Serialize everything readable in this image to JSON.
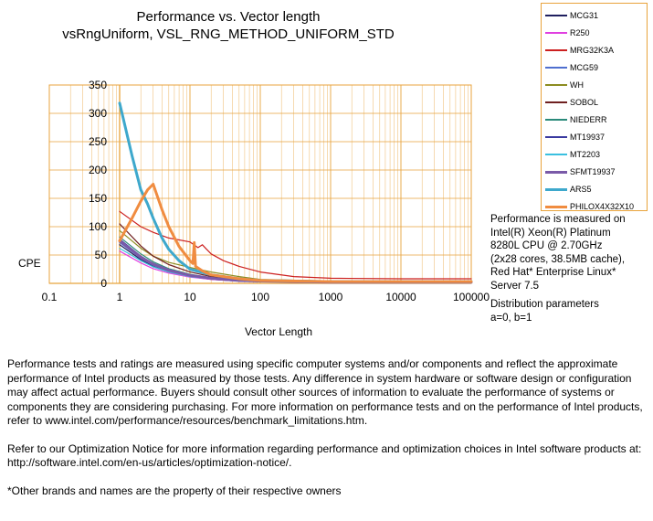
{
  "chart_data": {
    "type": "line",
    "title": "Performance vs. Vector length",
    "subtitle": "vsRngUniform, VSL_RNG_METHOD_UNIFORM_STD",
    "xlabel": "Vector Length",
    "ylabel": "CPE",
    "x_scale": "log",
    "xlim": [
      0.1,
      100000
    ],
    "ylim": [
      0,
      350
    ],
    "x_ticks": [
      "0.1",
      "1",
      "10",
      "100",
      "1000",
      "10000",
      "100000"
    ],
    "y_ticks": [
      "0",
      "50",
      "100",
      "150",
      "200",
      "250",
      "300",
      "350"
    ],
    "grid": true,
    "legend_position": "top-right",
    "series": [
      {
        "name": "MCG31",
        "color": "#1f1f5f",
        "width": 1.2,
        "x": [
          1,
          2,
          3,
          5,
          10,
          20,
          50,
          100,
          1000,
          10000,
          100000
        ],
        "y": [
          68,
          42,
          30,
          20,
          12,
          7,
          4,
          3,
          2,
          2,
          2
        ]
      },
      {
        "name": "R250",
        "color": "#e040e0",
        "width": 1.2,
        "x": [
          1,
          2,
          3,
          5,
          10,
          20,
          50,
          100,
          1000,
          10000,
          100000
        ],
        "y": [
          57,
          36,
          26,
          18,
          11,
          7,
          4,
          3,
          2,
          2,
          2
        ]
      },
      {
        "name": "MRG32K3A",
        "color": "#cc2020",
        "width": 1.2,
        "x": [
          1,
          2,
          3,
          5,
          10,
          13,
          15,
          17,
          20,
          30,
          50,
          100,
          300,
          1000,
          10000,
          100000
        ],
        "y": [
          127,
          100,
          90,
          80,
          73,
          63,
          68,
          61,
          52,
          40,
          30,
          20,
          12,
          9,
          8,
          8
        ]
      },
      {
        "name": "MCG59",
        "color": "#4f6fcf",
        "width": 1.2,
        "x": [
          1,
          2,
          3,
          5,
          10,
          20,
          50,
          100,
          1000,
          10000,
          100000
        ],
        "y": [
          72,
          44,
          32,
          22,
          13,
          8,
          5,
          3,
          2,
          2,
          2
        ]
      },
      {
        "name": "WH",
        "color": "#8c8c20",
        "width": 1.2,
        "x": [
          1,
          2,
          3,
          5,
          10,
          20,
          50,
          100,
          1000,
          10000,
          100000
        ],
        "y": [
          93,
          62,
          48,
          37,
          28,
          20,
          12,
          7,
          4,
          3,
          3
        ]
      },
      {
        "name": "SOBOL",
        "color": "#6f2020",
        "width": 1.2,
        "x": [
          1,
          2,
          3,
          5,
          10,
          20,
          50,
          100,
          1000,
          10000,
          100000
        ],
        "y": [
          105,
          66,
          48,
          33,
          20,
          12,
          7,
          5,
          3,
          3,
          3
        ]
      },
      {
        "name": "NIEDERR",
        "color": "#2a8a7a",
        "width": 1.2,
        "x": [
          1,
          2,
          3,
          5,
          10,
          20,
          50,
          100,
          1000,
          10000,
          100000
        ],
        "y": [
          82,
          52,
          38,
          26,
          16,
          10,
          6,
          4,
          3,
          3,
          3
        ]
      },
      {
        "name": "MT19937",
        "color": "#3a3aa0",
        "width": 1.2,
        "x": [
          1,
          2,
          3,
          5,
          10,
          20,
          50,
          100,
          1000,
          10000,
          100000
        ],
        "y": [
          78,
          48,
          35,
          24,
          14,
          9,
          5,
          4,
          2,
          2,
          2
        ]
      },
      {
        "name": "MT2203",
        "color": "#3ac0e0",
        "width": 1.2,
        "x": [
          1,
          2,
          3,
          5,
          10,
          20,
          50,
          100,
          1000,
          10000,
          100000
        ],
        "y": [
          62,
          40,
          29,
          20,
          12,
          8,
          5,
          3,
          2,
          2,
          2
        ]
      },
      {
        "name": "SFMT19937",
        "color": "#7a5aa8",
        "width": 3,
        "x": [
          1,
          2,
          3,
          5,
          10,
          20,
          50,
          100,
          1000,
          10000,
          100000
        ],
        "y": [
          75,
          46,
          34,
          23,
          14,
          9,
          5,
          4,
          2,
          2,
          2
        ]
      },
      {
        "name": "ARS5",
        "color": "#3ea8cc",
        "width": 3,
        "x": [
          1,
          1.5,
          2,
          2.5,
          3,
          4,
          5,
          7,
          10,
          20,
          50,
          100,
          1000,
          10000,
          100000
        ],
        "y": [
          318,
          225,
          165,
          140,
          115,
          80,
          60,
          40,
          25,
          15,
          8,
          5,
          3,
          3,
          3
        ]
      },
      {
        "name": "PHILOX4X32X10",
        "color": "#f08c40",
        "width": 3,
        "x": [
          1,
          1.5,
          2,
          2.5,
          3,
          4,
          5,
          7,
          10,
          11,
          11.5,
          12,
          15,
          20,
          50,
          100,
          1000,
          10000,
          100000
        ],
        "y": [
          75,
          115,
          145,
          165,
          175,
          130,
          100,
          65,
          40,
          35,
          72,
          30,
          22,
          15,
          8,
          5,
          3,
          3,
          3
        ]
      }
    ]
  },
  "side_note": {
    "line1": "Performance is measured on",
    "line2": "Intel(R) Xeon(R) Platinum",
    "line3": "8280L CPU @ 2.70GHz",
    "line4": "(2x28 cores, 38.5MB cache),",
    "line5": "Red Hat* Enterprise Linux*",
    "line6": "Server 7.5",
    "line7": "Distribution parameters",
    "line8": "a=0, b=1"
  },
  "footer": {
    "para1": "Performance tests and ratings are measured using specific computer systems and/or components and reflect the approximate performance of Intel products as measured by those tests. Any difference in system hardware or software design or configuration may affect actual performance. Buyers should consult other sources of information to evaluate the performance of systems or components they are considering purchasing. For more information on performance tests and on the performance of Intel products, refer to www.intel.com/performance/resources/benchmark_limitations.htm.",
    "para2": "Refer to our Optimization Notice for more information regarding performance and optimization choices in Intel software products at: http://software.intel.com/en-us/articles/optimization-notice/.",
    "para3": "*Other brands and names are the property of their respective owners"
  }
}
